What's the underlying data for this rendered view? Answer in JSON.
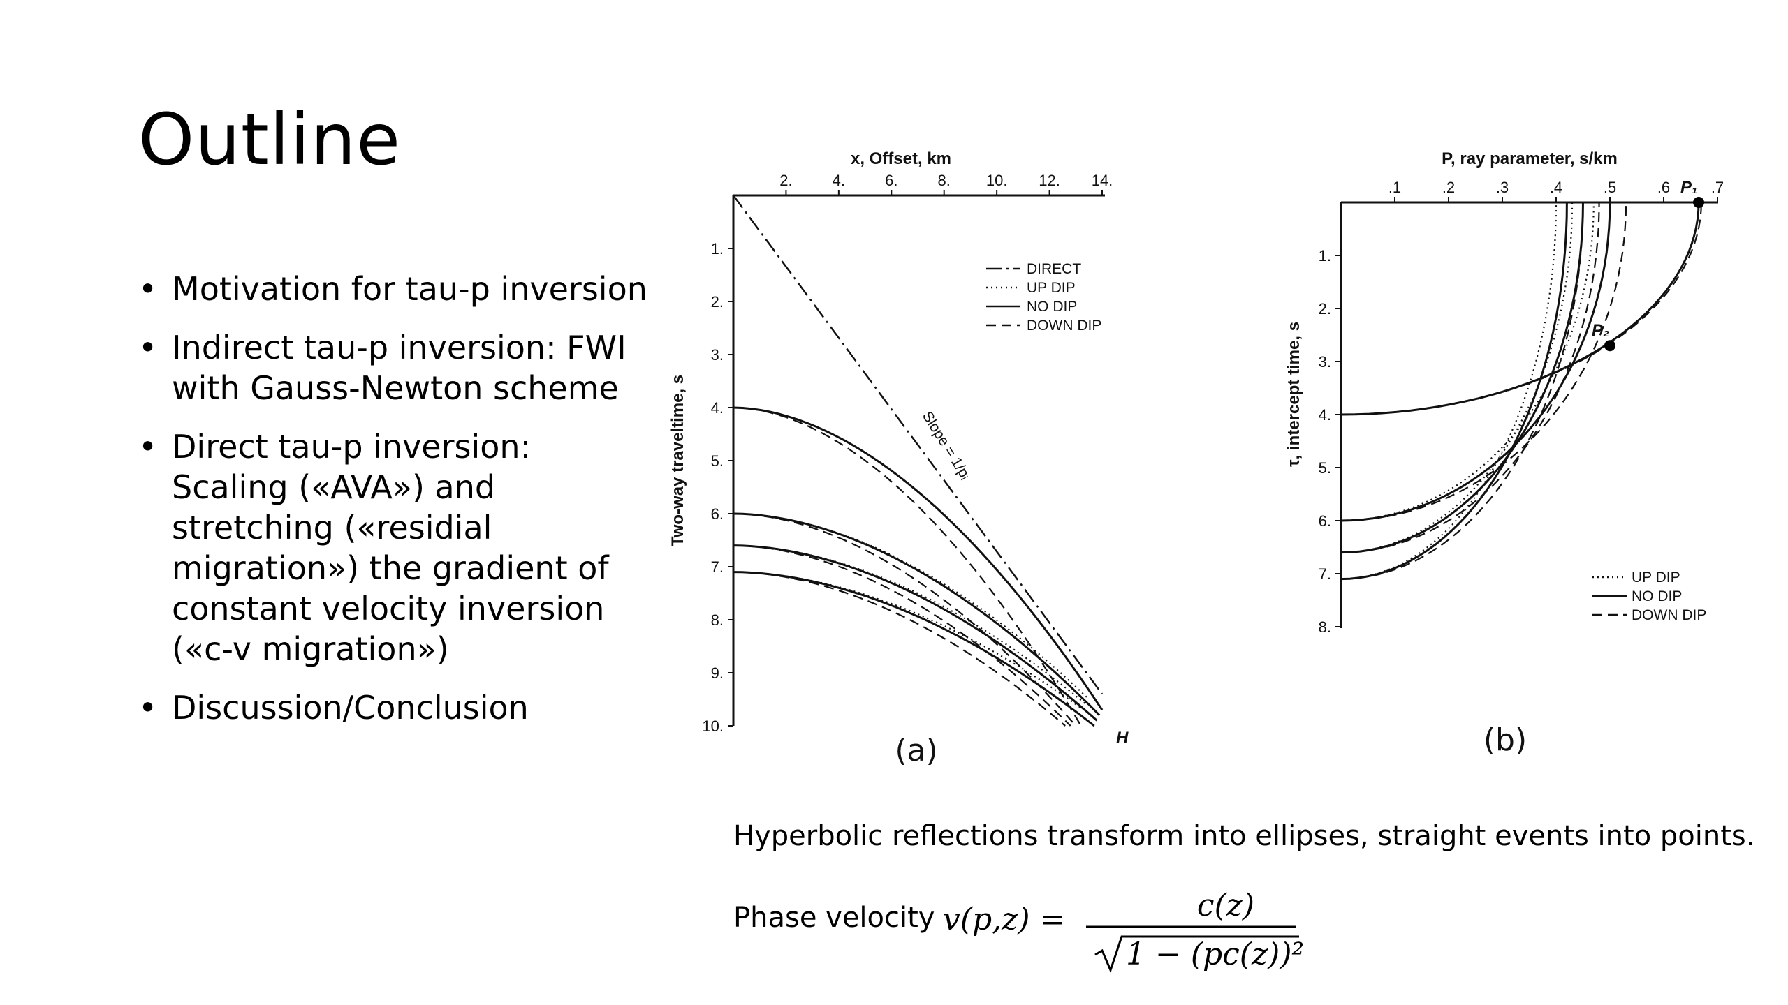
{
  "slide": {
    "title": "Outline",
    "bullets": [
      "Motivation for tau-p inversion",
      "Indirect tau-p inversion: FWI with Gauss-Newton scheme",
      "Direct tau-p inversion: Scaling («AVA») and stretching («residial migration») the gradient of constant velocity inversion («c-v migration»)",
      "Discussion/Conclusion"
    ],
    "caption": "Hyperbolic reflections transform into ellipses, straight events into points.",
    "formula_label": "Phase velocity",
    "formula": {
      "lhs": "v(p,z) =",
      "numerator": "c(z)",
      "denominator": "1 − (pc(z))²"
    }
  },
  "chart_data": [
    {
      "type": "line",
      "panel_label": "(a)",
      "xlabel": "x, Offset, km",
      "ylabel": "Two-way traveltime, s",
      "x_ticks": [
        "2.",
        "4.",
        "6.",
        "8.",
        "10.",
        "12.",
        "14."
      ],
      "y_ticks": [
        "1.",
        "2.",
        "3.",
        "4.",
        "5.",
        "6.",
        "7.",
        "8.",
        "9.",
        "10."
      ],
      "xlim": [
        0,
        14
      ],
      "ylim": [
        0,
        10
      ],
      "y_inverted": true,
      "legend_position": "top-right",
      "legend": [
        "DIRECT",
        "UP DIP",
        "NO DIP",
        "DOWN DIP"
      ],
      "annotations": [
        "Slope = 1/pᵢ",
        "H"
      ],
      "series": [
        {
          "name": "DIRECT",
          "style": "dashdot",
          "x": [
            0,
            14
          ],
          "y": [
            0,
            9.4
          ]
        },
        {
          "name": "UP DIP",
          "style": "dotted",
          "t0": [
            4.0,
            6.0,
            6.6,
            7.1
          ],
          "end": [
            [
              13.6,
              9.4
            ],
            [
              13.5,
              9.5
            ],
            [
              13.4,
              9.6
            ],
            [
              13.3,
              9.7
            ]
          ]
        },
        {
          "name": "NO DIP",
          "style": "solid",
          "t0": [
            4.0,
            6.0,
            6.6,
            7.1
          ],
          "end": [
            [
              14.0,
              9.7
            ],
            [
              13.9,
              9.8
            ],
            [
              13.8,
              9.9
            ],
            [
              13.7,
              10.0
            ]
          ]
        },
        {
          "name": "DOWN DIP",
          "style": "dashed",
          "t0": [
            4.0,
            6.0,
            6.6,
            7.1
          ],
          "end": [
            [
              13.2,
              10.0
            ],
            [
              13.0,
              10.0
            ],
            [
              12.8,
              10.0
            ],
            [
              12.6,
              10.0
            ]
          ]
        }
      ]
    },
    {
      "type": "line",
      "panel_label": "(b)",
      "xlabel": "P, ray parameter, s/km",
      "ylabel": "τ, intercept time, s",
      "x_ticks": [
        ".1",
        ".2",
        ".3",
        ".4",
        ".5",
        ".6",
        ".7"
      ],
      "y_ticks": [
        "1.",
        "2.",
        "3.",
        "4.",
        "5.",
        "6.",
        "7.",
        "8."
      ],
      "xlim": [
        0,
        0.7
      ],
      "ylim": [
        0,
        8
      ],
      "y_inverted": true,
      "legend_position": "bottom-right",
      "legend": [
        "UP DIP",
        "NO DIP",
        "DOWN DIP"
      ],
      "annotations": [
        "P₁",
        "P₂"
      ],
      "points": [
        {
          "label": "P₁",
          "p": 0.665,
          "tau": 0.0
        },
        {
          "label": "P₂",
          "p": 0.5,
          "tau": 2.7
        }
      ],
      "series": [
        {
          "name": "UP DIP",
          "style": "dotted",
          "tau0": [
            4.0,
            6.0,
            6.6,
            7.1
          ],
          "pmax": [
            0.665,
            0.47,
            0.43,
            0.4
          ]
        },
        {
          "name": "NO DIP",
          "style": "solid",
          "tau0": [
            4.0,
            6.0,
            6.6,
            7.1
          ],
          "pmax": [
            0.665,
            0.5,
            0.45,
            0.42
          ]
        },
        {
          "name": "DOWN DIP",
          "style": "dashed",
          "tau0": [
            4.0,
            6.0,
            6.6,
            7.1
          ],
          "pmax": [
            0.67,
            0.53,
            0.48,
            0.45
          ]
        }
      ]
    }
  ]
}
